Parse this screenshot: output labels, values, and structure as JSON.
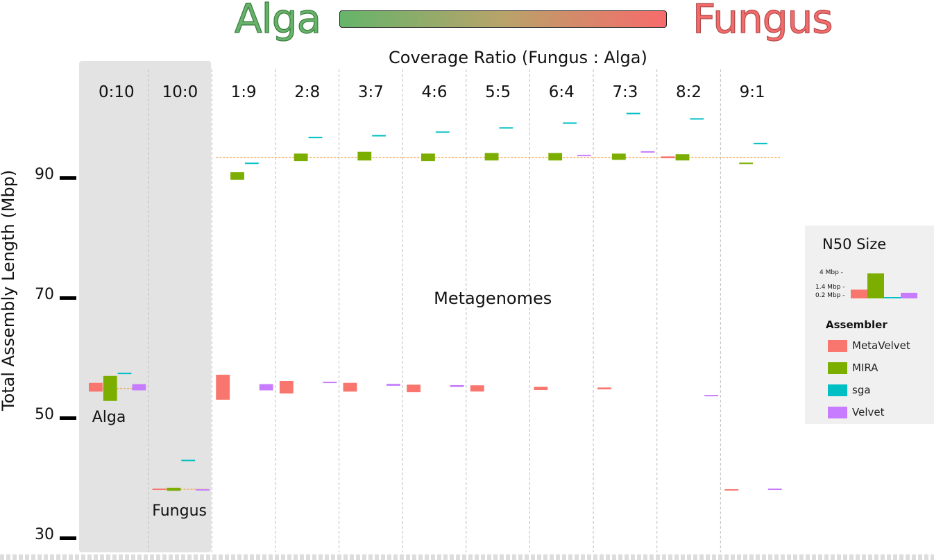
{
  "header": {
    "left_word": "Alga",
    "right_word": "Fungus",
    "left_color": "#66b46a",
    "right_color": "#f76b6b"
  },
  "chart_data": {
    "type": "scatter",
    "subtitle": "Coverage Ratio (Fungus : Alga)",
    "ylabel": "Total Assembly Length (Mbp)",
    "ylim": [
      27,
      107
    ],
    "yticks": [
      30,
      50,
      70,
      90
    ],
    "categories": [
      "0:10",
      "10:0",
      "1:9",
      "2:8",
      "3:7",
      "4:6",
      "5:5",
      "6:4",
      "7:3",
      "8:2",
      "9:1"
    ],
    "reference_groups": [
      "0:10",
      "10:0"
    ],
    "annotations": [
      "Alga",
      "Fungus",
      "Metagenomes"
    ],
    "reference_lines": [
      {
        "from": "0:10",
        "to": "0:10",
        "value": 55
      },
      {
        "from": "10:0",
        "to": "10:0",
        "value": 38.2
      },
      {
        "from": "1:9",
        "to": "9:1",
        "value": 93.5
      }
    ],
    "series": [
      {
        "name": "MetaVelvet",
        "color": "#f8766d",
        "values": [
          55.2,
          38.2,
          55.2,
          55.2,
          55.2,
          55.0,
          55.0,
          55.0,
          55.0,
          93.5,
          38.1
        ],
        "n50_mbp": [
          1.4,
          0.2,
          4.0,
          2.0,
          1.4,
          1.2,
          1.0,
          0.5,
          0.3,
          0.3,
          0.2
        ]
      },
      {
        "name": "MIRA",
        "color": "#7cae00",
        "values": [
          55.0,
          38.2,
          90.4,
          93.5,
          93.7,
          93.5,
          93.6,
          93.6,
          93.6,
          93.5,
          92.5
        ],
        "n50_mbp": [
          4.0,
          0.5,
          1.2,
          1.2,
          1.4,
          1.2,
          1.2,
          1.2,
          1.0,
          1.0,
          0.2
        ]
      },
      {
        "name": "sga",
        "color": "#00bfc4",
        "values": [
          57.5,
          43.0,
          92.5,
          96.8,
          97.1,
          97.7,
          98.4,
          99.2,
          100.8,
          99.9,
          95.8
        ],
        "n50_mbp": [
          0.2,
          0.2,
          0.2,
          0.2,
          0.2,
          0.2,
          0.2,
          0.2,
          0.2,
          0.2,
          0.2
        ]
      },
      {
        "name": "Velvet",
        "color": "#c77cff",
        "values": [
          55.2,
          38.1,
          55.2,
          56.0,
          55.6,
          55.4,
          null,
          93.8,
          94.4,
          53.8,
          38.2
        ],
        "n50_mbp": [
          1.0,
          0.2,
          1.0,
          0.2,
          0.3,
          0.3,
          null,
          0.2,
          0.2,
          0.2,
          0.2
        ]
      }
    ]
  },
  "legend": {
    "n50_title": "N50 Size",
    "n50_labels": [
      "4 Mbp -",
      "1.4 Mbp -",
      "0.2 Mbp -"
    ],
    "n50_values": [
      4.0,
      1.4,
      0.2
    ],
    "assembler_title": "Assembler",
    "assemblers": [
      "MetaVelvet",
      "MIRA",
      "sga",
      "Velvet"
    ]
  }
}
